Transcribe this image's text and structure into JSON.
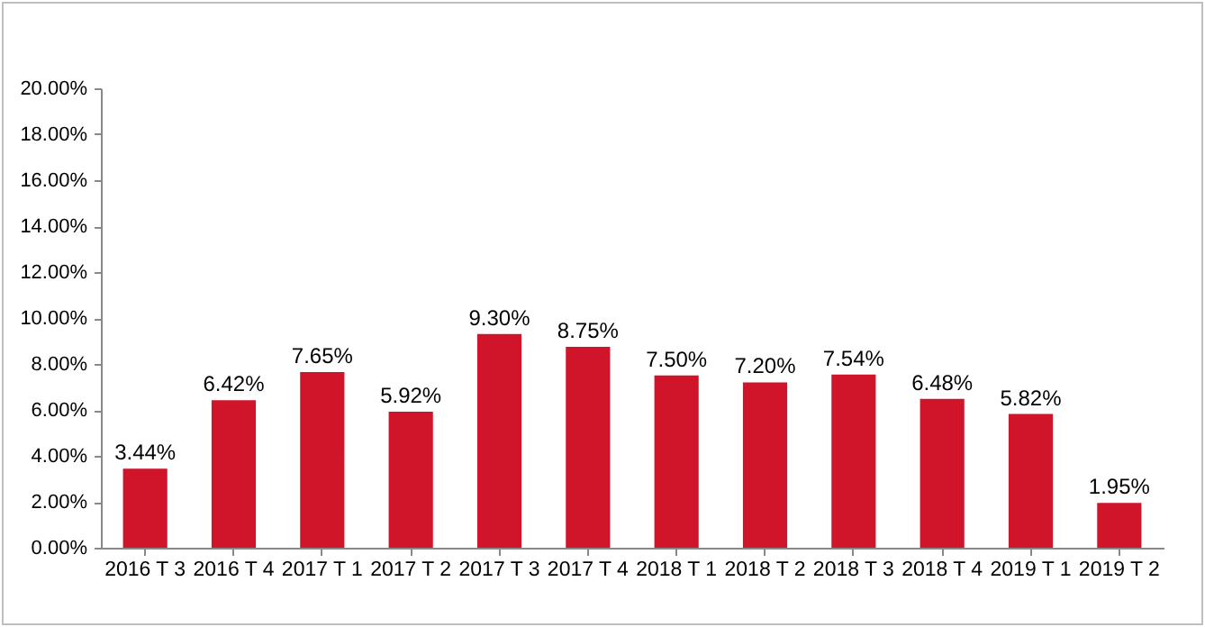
{
  "chart_data": {
    "type": "bar",
    "categories": [
      "2016 T 3",
      "2016 T 4",
      "2017 T 1",
      "2017 T 2",
      "2017 T 3",
      "2017 T 4",
      "2018 T 1",
      "2018 T 2",
      "2018 T 3",
      "2018 T 4",
      "2019 T 1",
      "2019 T 2"
    ],
    "values": [
      3.44,
      6.42,
      7.65,
      5.92,
      9.3,
      8.75,
      7.5,
      7.2,
      7.54,
      6.48,
      5.82,
      1.95
    ],
    "value_labels": [
      "3.44%",
      "6.42%",
      "7.65%",
      "5.92%",
      "9.30%",
      "8.75%",
      "7.50%",
      "7.20%",
      "7.54%",
      "6.48%",
      "5.82%",
      "1.95%"
    ],
    "color": "#d0152b",
    "ylim": [
      0,
      20
    ],
    "yticks": [
      {
        "value": 0,
        "label": "0.00%"
      },
      {
        "value": 2,
        "label": "2.00%"
      },
      {
        "value": 4,
        "label": "4.00%"
      },
      {
        "value": 6,
        "label": "6.00%"
      },
      {
        "value": 8,
        "label": "8.00%"
      },
      {
        "value": 10,
        "label": "10.00%"
      },
      {
        "value": 12,
        "label": "12.00%"
      },
      {
        "value": 14,
        "label": "14.00%"
      },
      {
        "value": 16,
        "label": "16.00%"
      },
      {
        "value": 18,
        "label": "18.00%"
      },
      {
        "value": 20,
        "label": "20.00%"
      }
    ],
    "grid": false
  }
}
